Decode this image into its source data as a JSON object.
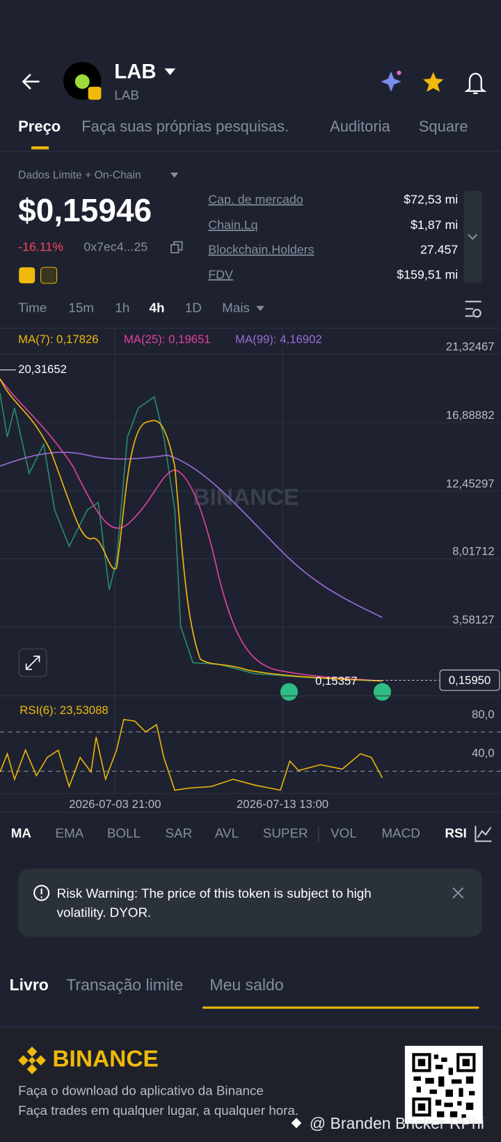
{
  "header": {
    "title": "LAB",
    "subtitle": "LAB"
  },
  "tabs": [
    "Preço",
    "Faça suas próprias pesquisas.",
    "Auditoria",
    "Square"
  ],
  "source": "Dados Limite + On-Chain",
  "price": "$0,15946",
  "change": "-16.11%",
  "address": "0x7ec4...25",
  "stats": [
    {
      "label": "Cap. de mercado",
      "value": "$72,53 mi"
    },
    {
      "label": "Chain.Lq",
      "value": "$1,87 mi"
    },
    {
      "label": "Blockchain.Holders",
      "value": "27.457"
    },
    {
      "label": "FDV",
      "value": "$159,51 mi"
    }
  ],
  "intervals": [
    "Time",
    "15m",
    "1h",
    "4h",
    "1D",
    "Mais"
  ],
  "chart": {
    "ma": [
      "MA(7): 0,17826",
      "MA(25): 0,19651",
      "MA(99): 4,16902"
    ],
    "price_axis": [
      "21,32467",
      "16,88882",
      "12,45297",
      "8,01712",
      "3,58127"
    ],
    "high": "20,31652",
    "low": "0,15357",
    "last": "0,15950",
    "watermark": "BINANCE",
    "rsi": "RSI(6): 23,53088",
    "rsi_axis": [
      "80,0",
      "40,0"
    ],
    "dates": [
      "2026-07-03 21:00",
      "2026-07-13 13:00"
    ]
  },
  "indicators": [
    "MA",
    "EMA",
    "BOLL",
    "SAR",
    "AVL",
    "SUPER",
    "VOL",
    "MACD",
    "RSI"
  ],
  "warning": [
    "Risk Warning: The price of this token is subject to high",
    "volatility. DYOR."
  ],
  "bottom_tabs": [
    "Livro",
    "Transação limite",
    "Meu saldo"
  ],
  "footer": {
    "brand": "BINANCE",
    "lines": [
      "Faça o download do aplicativo da Binance",
      "Faça trades em qualquer lugar, a qualquer hora."
    ],
    "credit": "@ Branden Bricker RPhi"
  }
}
